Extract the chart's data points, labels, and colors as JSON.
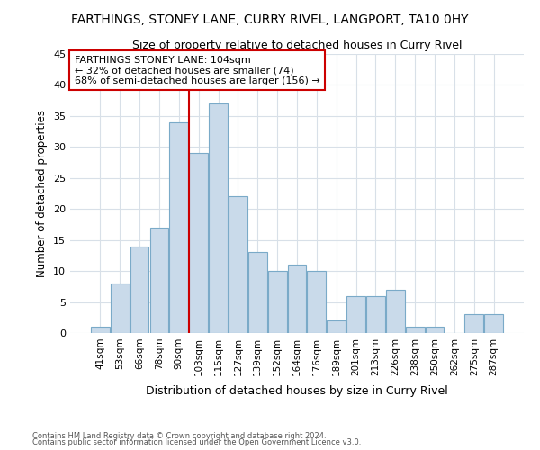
{
  "title": "FARTHINGS, STONEY LANE, CURRY RIVEL, LANGPORT, TA10 0HY",
  "subtitle": "Size of property relative to detached houses in Curry Rivel",
  "xlabel": "Distribution of detached houses by size in Curry Rivel",
  "ylabel": "Number of detached properties",
  "categories": [
    "41sqm",
    "53sqm",
    "66sqm",
    "78sqm",
    "90sqm",
    "103sqm",
    "115sqm",
    "127sqm",
    "139sqm",
    "152sqm",
    "164sqm",
    "176sqm",
    "189sqm",
    "201sqm",
    "213sqm",
    "226sqm",
    "238sqm",
    "250sqm",
    "262sqm",
    "275sqm",
    "287sqm"
  ],
  "values": [
    1,
    8,
    14,
    17,
    34,
    29,
    37,
    22,
    13,
    10,
    11,
    10,
    2,
    6,
    6,
    7,
    1,
    1,
    0,
    3,
    3
  ],
  "bar_color": "#c9daea",
  "bar_edge_color": "#7aaac8",
  "bar_linewidth": 0.8,
  "vline_x": 5.5,
  "vline_color": "#cc0000",
  "annotation_text": "FARTHINGS STONEY LANE: 104sqm\n← 32% of detached houses are smaller (74)\n68% of semi-detached houses are larger (156) →",
  "annotation_box_color": "#ffffff",
  "annotation_box_edgecolor": "#cc0000",
  "ylim": [
    0,
    45
  ],
  "yticks": [
    0,
    5,
    10,
    15,
    20,
    25,
    30,
    35,
    40,
    45
  ],
  "bg_color": "#ffffff",
  "grid_color": "#d8e0e8",
  "footer1": "Contains HM Land Registry data © Crown copyright and database right 2024.",
  "footer2": "Contains public sector information licensed under the Open Government Licence v3.0."
}
